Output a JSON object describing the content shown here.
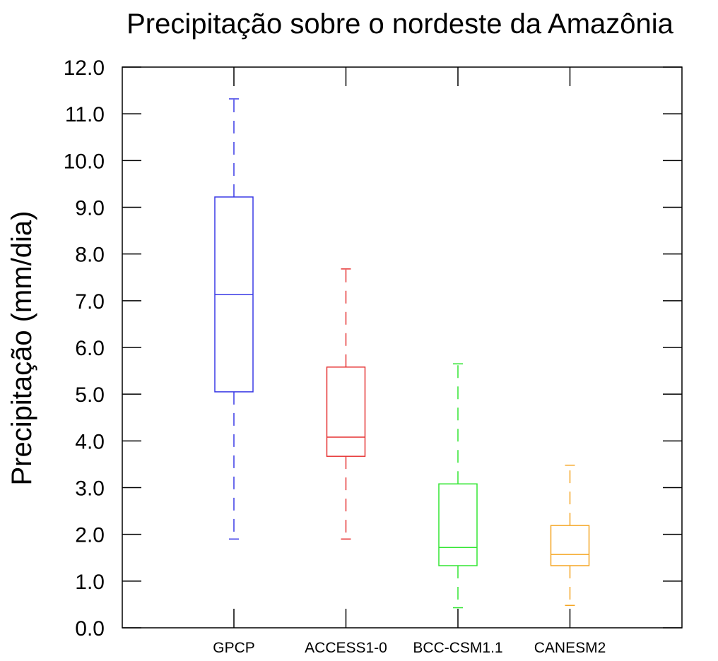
{
  "chart_data": {
    "type": "boxplot",
    "title": "Precipitação sobre o nordeste da Amazônia",
    "ylabel": "Precipitação (mm/dia)",
    "xlabel": "",
    "ylim": [
      0.0,
      12.0
    ],
    "yticks": [
      "0.0",
      "1.0",
      "2.0",
      "3.0",
      "4.0",
      "5.0",
      "6.0",
      "7.0",
      "8.0",
      "9.0",
      "10.0",
      "11.0",
      "12.0"
    ],
    "grid": false,
    "legend": "none",
    "categories": [
      "GPCP",
      "ACCESS1-0",
      "BCC-CSM1.1",
      "CANESM2"
    ],
    "boxes": [
      {
        "category": "GPCP",
        "min": 1.9,
        "q1": 5.05,
        "median": 7.13,
        "q3": 9.22,
        "max": 11.32,
        "color": "#3a3ae6"
      },
      {
        "category": "ACCESS1-0",
        "min": 1.9,
        "q1": 3.67,
        "median": 4.08,
        "q3": 5.58,
        "max": 7.68,
        "color": "#e63232"
      },
      {
        "category": "BCC-CSM1.1",
        "min": 0.43,
        "q1": 1.33,
        "median": 1.72,
        "q3": 3.08,
        "max": 5.65,
        "color": "#33e633"
      },
      {
        "category": "CANESM2",
        "min": 0.48,
        "q1": 1.33,
        "median": 1.57,
        "q3": 2.19,
        "max": 3.48,
        "color": "#f5a623"
      }
    ]
  }
}
